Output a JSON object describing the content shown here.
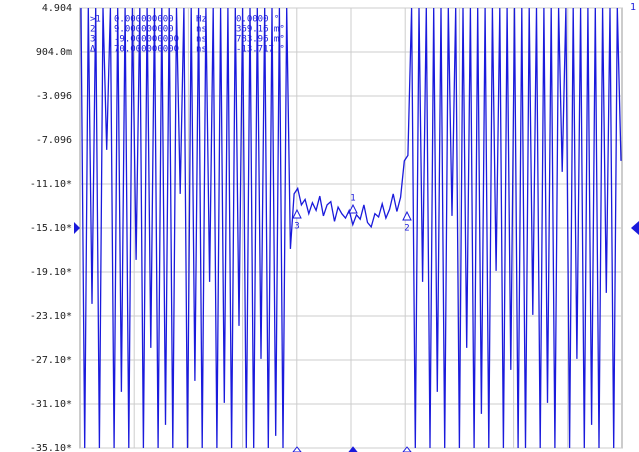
{
  "chart_data": {
    "type": "line",
    "trace_label": "1",
    "ylim": [
      -35.1,
      4.904
    ],
    "yticks": [
      4.904,
      {
        "value": 0.904,
        "label": "904.0m"
      },
      -3.096,
      -7.096,
      {
        "value": -11.1,
        "label": "-11.10*"
      },
      {
        "value": -15.1,
        "label": "-15.10*"
      },
      {
        "value": -19.1,
        "label": "-19.10*"
      },
      {
        "value": -23.1,
        "label": "-23.10*"
      },
      {
        "value": -27.1,
        "label": "-27.10*"
      },
      {
        "value": -31.1,
        "label": "-31.10*"
      },
      {
        "value": -35.1,
        "label": "-35.10*"
      }
    ],
    "grid": true,
    "color": "#1a1adc",
    "marker_table": [
      [
        ">1",
        "0.000000000",
        "Hz",
        "0.0000 °"
      ],
      [
        "2",
        "9.000000000",
        "ns",
        "369.16 m°"
      ],
      [
        "3",
        "-9.000000000",
        "ns",
        "783.96 m°"
      ],
      [
        "Δ",
        "70.000000000",
        "ns",
        "-13.717 °"
      ]
    ],
    "markers": [
      {
        "label": "3"
      },
      {
        "label": "1"
      },
      {
        "label": "2"
      }
    ],
    "values": [
      4.9,
      -35.1,
      4.9,
      -22,
      4.9,
      -35.1,
      4.9,
      -8,
      4.9,
      -35.1,
      4.9,
      -30,
      4.9,
      -35.1,
      4.9,
      -18,
      4.9,
      -35.1,
      4.9,
      -26,
      4.9,
      -35.1,
      4.9,
      -33,
      4.9,
      -35.1,
      4.9,
      -12,
      4.9,
      -35.1,
      4.9,
      -29,
      4.9,
      -35.1,
      4.9,
      -20,
      4.9,
      -35.1,
      4.9,
      -31,
      4.9,
      -35.1,
      4.9,
      -24,
      4.9,
      -35.1,
      4.9,
      -35.1,
      4.9,
      -27,
      4.9,
      -35.1,
      4.9,
      -34,
      4.9,
      -35.1,
      4.9,
      -17,
      -12,
      -11.5,
      -13,
      -12.5,
      -13.8,
      -12.8,
      -13.5,
      -12.2,
      -14,
      -13,
      -12.7,
      -14.5,
      -13.2,
      -13.8,
      -14.2,
      -13.5,
      -14.8,
      -13.9,
      -14.3,
      -13,
      -14.6,
      -15,
      -13.8,
      -14.1,
      -12.9,
      -14.2,
      -13.4,
      -12,
      -13.6,
      -12.3,
      -9,
      -8.5,
      4.9,
      -35.1,
      4.9,
      -20,
      4.9,
      -35.1,
      4.9,
      -30,
      4.9,
      -35.1,
      4.9,
      -14,
      4.9,
      -35.1,
      4.9,
      -26,
      4.9,
      -35.1,
      4.9,
      -32,
      4.9,
      -35.1,
      4.9,
      -19,
      4.9,
      -35.1,
      4.9,
      -28,
      4.9,
      -35.1,
      4.9,
      -35.1,
      4.9,
      -23,
      4.9,
      -35.1,
      4.9,
      -31,
      4.9,
      -35.1,
      4.9,
      -10,
      4.9,
      -35.1,
      4.9,
      -27,
      4.9,
      -35.1,
      4.9,
      -33,
      4.9,
      -35.1,
      4.9,
      -21,
      4.9,
      -35.1,
      4.9,
      -9
    ]
  }
}
